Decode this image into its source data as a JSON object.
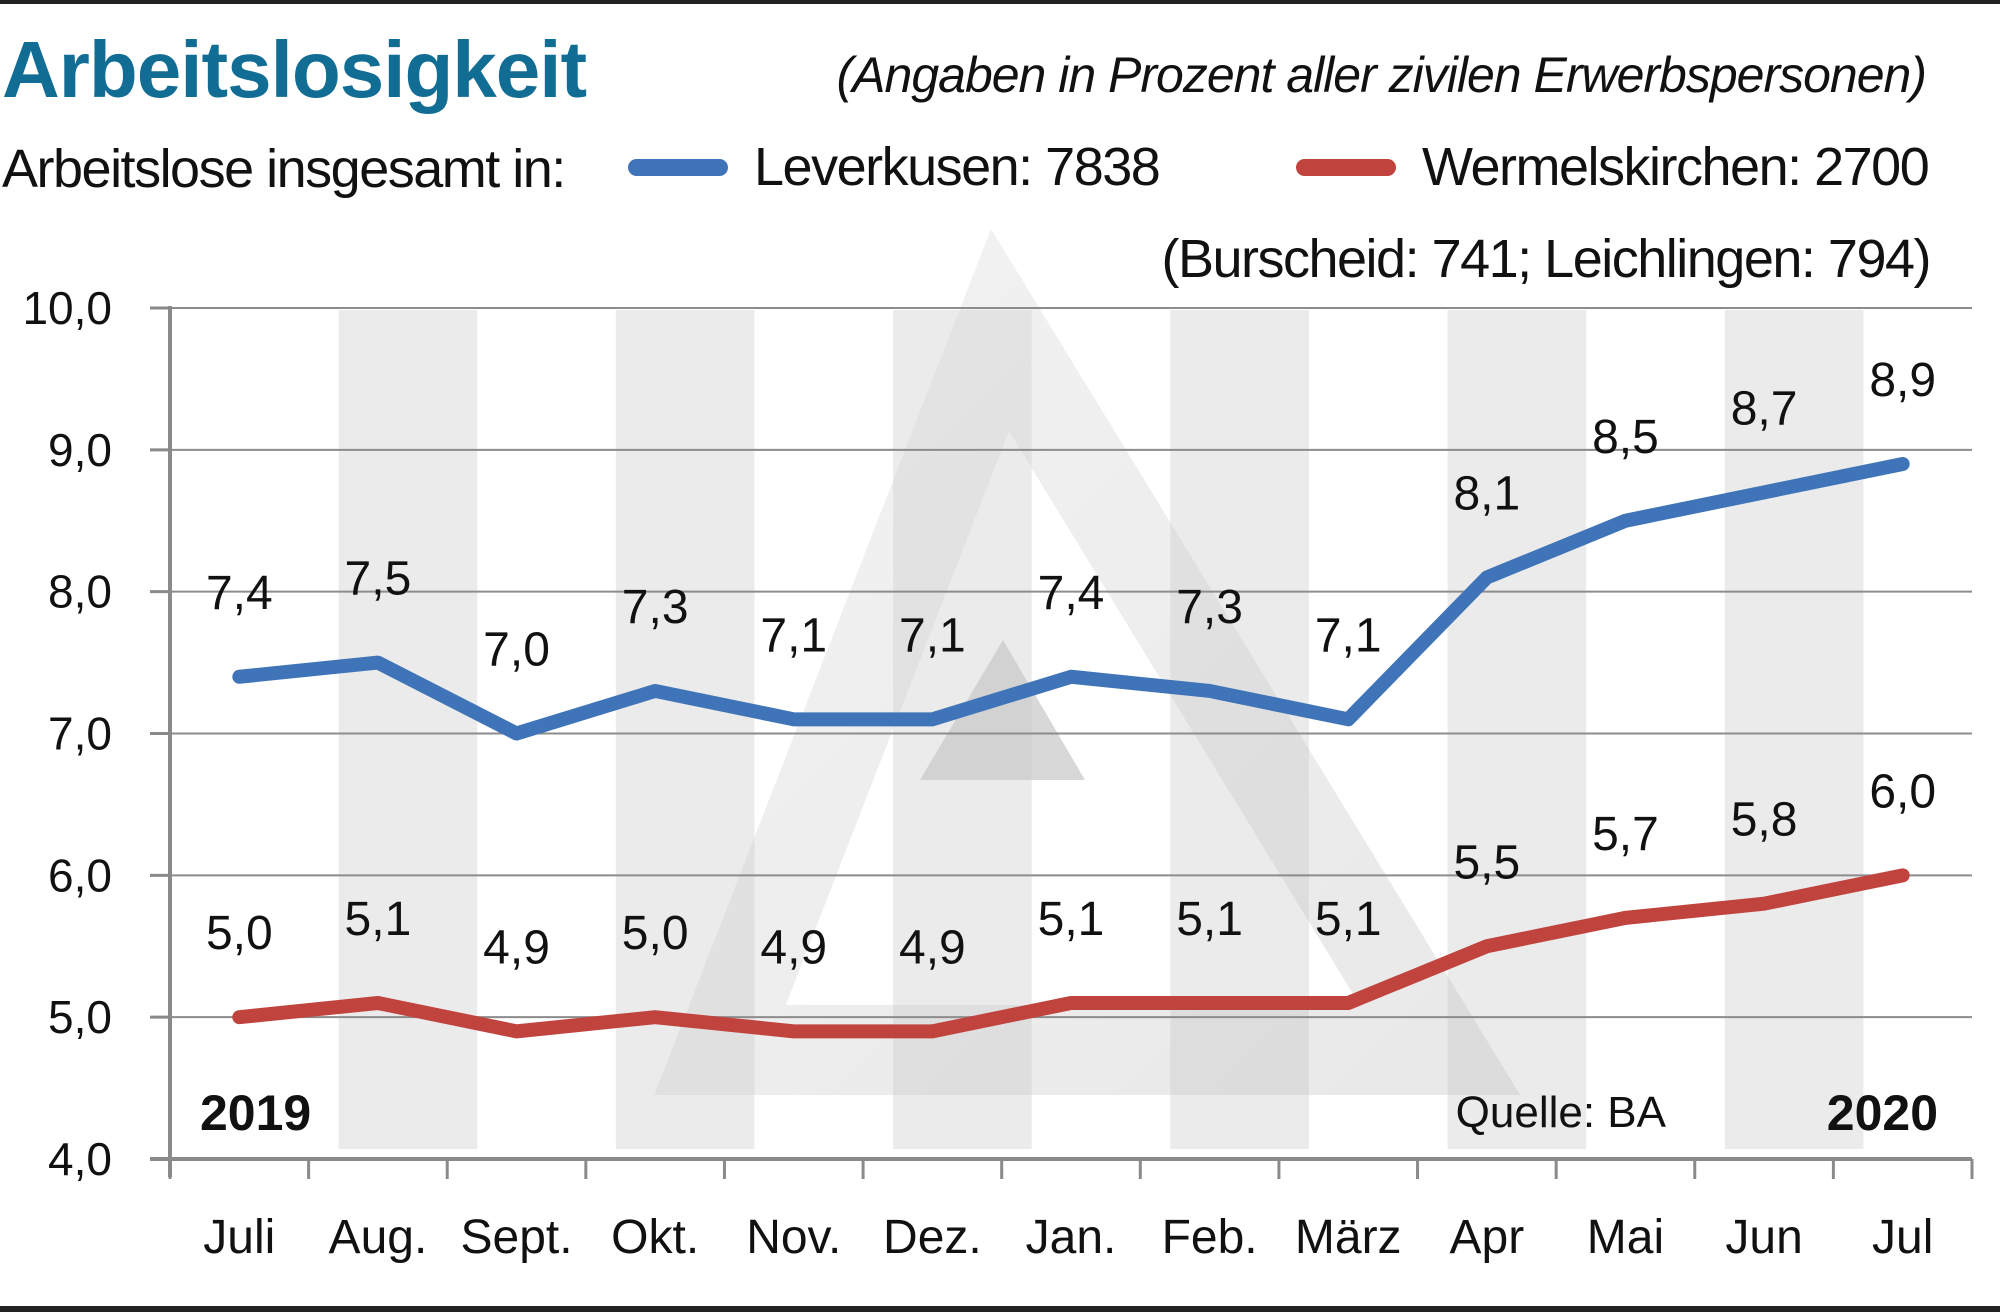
{
  "header": {
    "title": "Arbeitslosigkeit",
    "subtitle": "(Angaben in Prozent aller zivilen Erwerbspersonen)",
    "legend_intro": "Arbeitslose insgesamt in:",
    "legend_note": "(Burscheid: 741; Leichlingen: 794)"
  },
  "colors": {
    "title": "#116d94",
    "leverkusen": "#3f74b8",
    "wermelskirchen": "#c0433e",
    "band": "#ebebeb",
    "grid": "#8c8c8c"
  },
  "chart_data": {
    "type": "line",
    "title": "Arbeitslosigkeit",
    "subtitle": "(Angaben in Prozent aller zivilen Erwerbspersonen)",
    "xlabel": "",
    "ylabel": "",
    "categories": [
      "Juli",
      "Aug.",
      "Sept.",
      "Okt.",
      "Nov.",
      "Dez.",
      "Jan.",
      "Feb.",
      "März",
      "Apr",
      "Mai",
      "Jun",
      "Jul"
    ],
    "yticks": [
      "4,0",
      "5,0",
      "6,0",
      "7,0",
      "8,0",
      "9,0",
      "10,0"
    ],
    "ylim": [
      4.0,
      10.0
    ],
    "grid": true,
    "legend_position": "top",
    "series": [
      {
        "name": "Leverkusen",
        "legend_label": "Leverkusen: 7838",
        "color": "#3f74b8",
        "values": [
          7.4,
          7.5,
          7.0,
          7.3,
          7.1,
          7.1,
          7.4,
          7.3,
          7.1,
          8.1,
          8.5,
          8.7,
          8.9
        ],
        "labels": [
          "7,4",
          "7,5",
          "7,0",
          "7,3",
          "7,1",
          "7,1",
          "7,4",
          "7,3",
          "7,1",
          "8,1",
          "8,5",
          "8,7",
          "8,9"
        ]
      },
      {
        "name": "Wermelskirchen",
        "legend_label": "Wermelskirchen: 2700",
        "color": "#c0433e",
        "values": [
          5.0,
          5.1,
          4.9,
          5.0,
          4.9,
          4.9,
          5.1,
          5.1,
          5.1,
          5.5,
          5.7,
          5.8,
          6.0
        ],
        "labels": [
          "5,0",
          "5,1",
          "4,9",
          "5,0",
          "4,9",
          "4,9",
          "5,1",
          "5,1",
          "5,1",
          "5,5",
          "5,7",
          "5,8",
          "6,0"
        ]
      }
    ],
    "annotations": {
      "year_start": "2019",
      "year_end": "2020",
      "source": "Quelle: BA"
    }
  }
}
